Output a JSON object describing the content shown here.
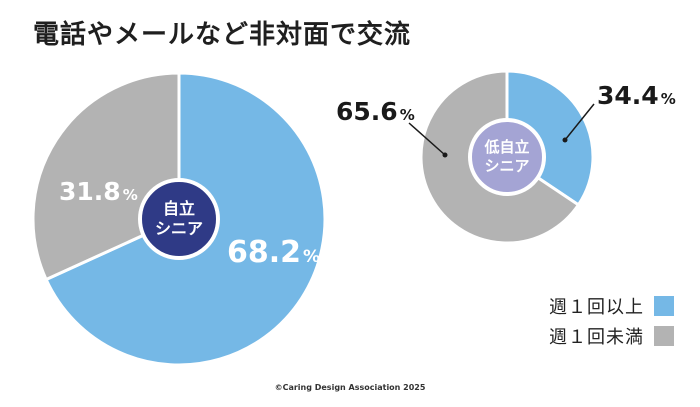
{
  "title": "電話やメールなど非対面で交流",
  "colors": {
    "weekly": "#75b8e6",
    "less": "#b3b3b3",
    "independent_center": "#2f3a86",
    "low_center": "#a4a4d4"
  },
  "chart_data": [
    {
      "type": "pie",
      "name": "自立シニア",
      "center_label": [
        "自立",
        "シニア"
      ],
      "slices": [
        {
          "label": "週１回以上",
          "value": 68.2,
          "display": "68.2",
          "unit": "%"
        },
        {
          "label": "週１回未満",
          "value": 31.8,
          "display": "31.8",
          "unit": "%"
        }
      ]
    },
    {
      "type": "pie",
      "name": "低自立シニア",
      "center_label": [
        "低自立",
        "シニア"
      ],
      "slices": [
        {
          "label": "週１回以上",
          "value": 34.4,
          "display": "34.4",
          "unit": "%"
        },
        {
          "label": "週１回未満",
          "value": 65.6,
          "display": "65.6",
          "unit": "%"
        }
      ]
    }
  ],
  "legend": [
    {
      "label": "週１回以上",
      "color": "#75b8e6"
    },
    {
      "label": "週１回未満",
      "color": "#b3b3b3"
    }
  ],
  "copyright": "©Caring Design Association 2025"
}
